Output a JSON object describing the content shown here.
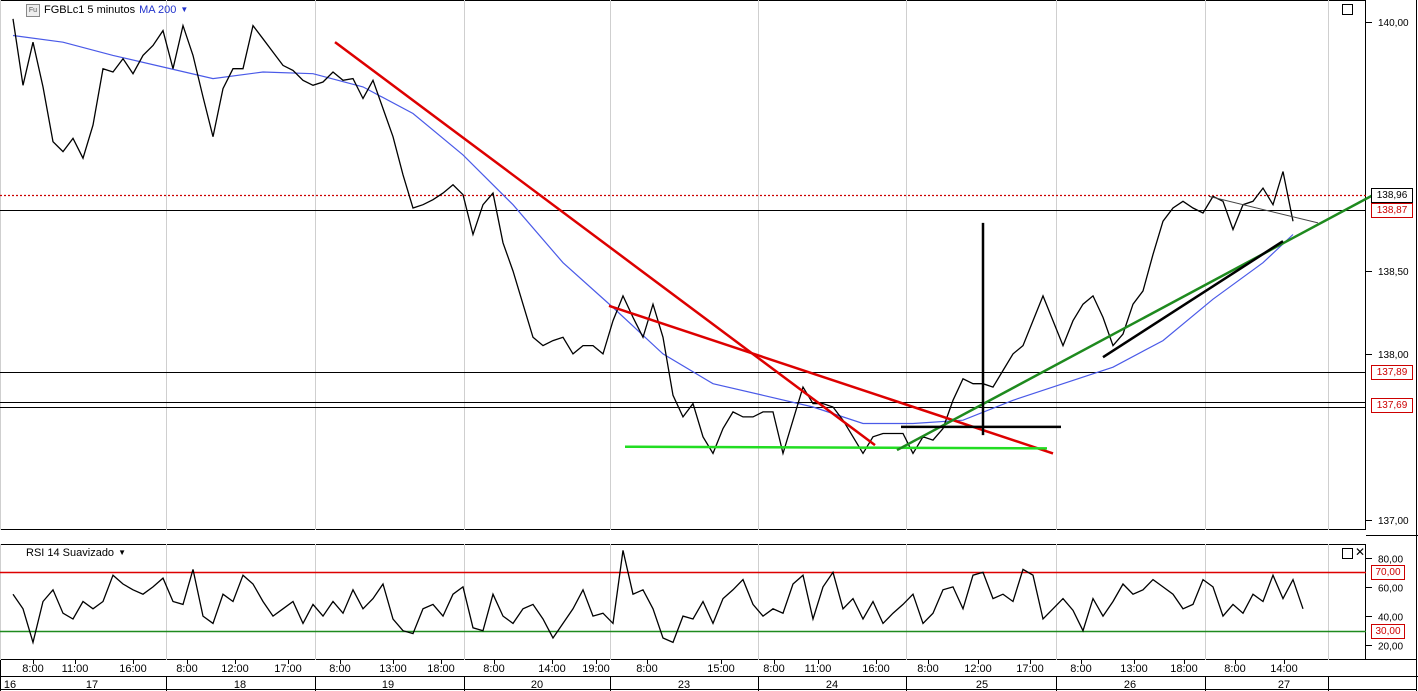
{
  "main_panel": {
    "symbol_icon": "Fu",
    "symbol_label": "FGBLc1 5 minutos",
    "ma_label": "MA 200",
    "y_ticks": [
      "140,00",
      "138,00",
      "137,00"
    ],
    "price_tags": [
      {
        "label": "138,96",
        "value": 138.96,
        "color": "#000000",
        "line_color": "#cc0000",
        "line_style": "dotted"
      },
      {
        "label": "138,87",
        "value": 138.87,
        "color": "#cc0000",
        "line_color": "#000000",
        "line_style": "solid"
      },
      {
        "label": "137,89",
        "value": 137.89,
        "color": "#cc0000",
        "line_color": "#000000",
        "line_style": "solid"
      },
      {
        "label": "137,69",
        "value": 137.69,
        "color": "#cc0000",
        "line_color": "#000000",
        "line_style": "double"
      }
    ],
    "tick_138_50_hidden": "138,50"
  },
  "rsi_panel": {
    "label": "RSI 14 Suavizado",
    "y_ticks": [
      "80,00",
      "60,00",
      "40,00",
      "20,00"
    ],
    "level_tags": [
      {
        "label": "70,00",
        "value": 70,
        "color": "#cc0000"
      },
      {
        "label": "30,00",
        "value": 30,
        "color": "#cc0000"
      }
    ]
  },
  "x_axis": {
    "time_labels": [
      "8:00",
      "11:00",
      "16:00",
      "8:00",
      "12:00",
      "17:00",
      "8:00",
      "13:00",
      "18:00",
      "8:00",
      "14:00",
      "19:00",
      "8:00",
      "15:00",
      "8:00",
      "11:00",
      "16:00",
      "8:00",
      "12:00",
      "17:00",
      "8:00",
      "13:00",
      "18:00",
      "8:00",
      "14:00"
    ],
    "day_labels": [
      "16",
      "17",
      "18",
      "19",
      "20",
      "23",
      "24",
      "25",
      "26",
      "27"
    ]
  },
  "chart_data": [
    {
      "type": "line",
      "title": "FGBLc1 5 minutos",
      "series": [
        {
          "name": "FGBLc1 5 minutos",
          "color": "#000000",
          "x": [
            0,
            10,
            20,
            30,
            40,
            50,
            60,
            70,
            80,
            90,
            100,
            110,
            120,
            130,
            140,
            150,
            160,
            170,
            180,
            190,
            200,
            210,
            220,
            230,
            240,
            250,
            260,
            270,
            280,
            290,
            300,
            310,
            320,
            330,
            340,
            350,
            360,
            370,
            380,
            390,
            400,
            410,
            420,
            430,
            440,
            450,
            460,
            470,
            480,
            490,
            500,
            510,
            520,
            530,
            540,
            550,
            560,
            570,
            580,
            590,
            600,
            610,
            620,
            630,
            640,
            650,
            660,
            670,
            680,
            690,
            700,
            710,
            720,
            730,
            740,
            750,
            760,
            770,
            780,
            790,
            800,
            810,
            820,
            830,
            840,
            850,
            860,
            870,
            880,
            890,
            900,
            910,
            920,
            930,
            940,
            950,
            960,
            970,
            980,
            990,
            1000,
            1010,
            1020,
            1030,
            1040,
            1050,
            1060,
            1070,
            1080,
            1090,
            1100,
            1110,
            1120,
            1130,
            1140,
            1150,
            1160,
            1170,
            1180,
            1190,
            1200,
            1210,
            1220,
            1230,
            1240,
            1250,
            1260,
            1270,
            1280
          ],
          "values": [
            140.02,
            139.62,
            139.88,
            139.61,
            139.28,
            139.22,
            139.3,
            139.18,
            139.38,
            139.72,
            139.7,
            139.78,
            139.69,
            139.8,
            139.86,
            139.95,
            139.72,
            139.98,
            139.8,
            139.55,
            139.31,
            139.6,
            139.72,
            139.72,
            139.98,
            139.9,
            139.82,
            139.74,
            139.71,
            139.65,
            139.62,
            139.64,
            139.7,
            139.65,
            139.66,
            139.54,
            139.65,
            139.48,
            139.31,
            139.08,
            138.88,
            138.9,
            138.93,
            138.97,
            139.02,
            138.96,
            138.72,
            138.9,
            138.97,
            138.67,
            138.5,
            138.3,
            138.1,
            138.05,
            138.08,
            138.1,
            138.0,
            138.05,
            138.05,
            138.0,
            138.2,
            138.35,
            138.22,
            138.1,
            138.3,
            138.1,
            137.75,
            137.62,
            137.7,
            137.5,
            137.4,
            137.55,
            137.65,
            137.62,
            137.62,
            137.65,
            137.65,
            137.4,
            137.6,
            137.8,
            137.7,
            137.7,
            137.68,
            137.6,
            137.5,
            137.4,
            137.5,
            137.52,
            137.52,
            137.52,
            137.4,
            137.5,
            137.48,
            137.55,
            137.72,
            137.85,
            137.82,
            137.82,
            137.8,
            137.9,
            138.0,
            138.05,
            138.2,
            138.35,
            138.2,
            138.05,
            138.2,
            138.3,
            138.35,
            138.22,
            138.05,
            138.12,
            138.3,
            138.38,
            138.6,
            138.8,
            138.88,
            138.92,
            138.88,
            138.85,
            138.95,
            138.92,
            138.75,
            138.9,
            138.92,
            139.0,
            138.9,
            139.1,
            138.8
          ]
        },
        {
          "name": "MA 200",
          "color": "#4a5ae8",
          "x": [
            0,
            50,
            100,
            150,
            200,
            250,
            300,
            350,
            400,
            450,
            500,
            550,
            600,
            650,
            700,
            750,
            800,
            850,
            900,
            950,
            1000,
            1050,
            1100,
            1150,
            1200,
            1250,
            1280
          ],
          "values": [
            139.92,
            139.88,
            139.8,
            139.73,
            139.66,
            139.7,
            139.69,
            139.61,
            139.45,
            139.2,
            138.9,
            138.55,
            138.28,
            138.0,
            137.82,
            137.75,
            137.68,
            137.58,
            137.58,
            137.6,
            137.72,
            137.82,
            137.92,
            138.08,
            138.33,
            138.55,
            138.72
          ]
        }
      ],
      "annotations": [
        {
          "type": "trendline",
          "color": "#dd0000",
          "from": [
            322,
            139.88
          ],
          "to": [
            862,
            137.45
          ]
        },
        {
          "type": "trendline",
          "color": "#dd0000",
          "from": [
            596,
            138.29
          ],
          "to": [
            1040,
            137.4
          ]
        },
        {
          "type": "trendline",
          "color": "#22dd22",
          "from": [
            612,
            137.44
          ],
          "to": [
            1034,
            137.43
          ]
        },
        {
          "type": "trendline",
          "color": "#1e8a1e",
          "from": [
            884,
            137.42
          ],
          "to": [
            1370,
            138.99
          ]
        },
        {
          "type": "trendline",
          "color": "#000000",
          "from": [
            1090,
            137.98
          ],
          "to": [
            1270,
            138.68
          ]
        },
        {
          "type": "trendline",
          "color": "#444444",
          "from": [
            1196,
            138.95
          ],
          "to": [
            1305,
            138.79
          ]
        },
        {
          "type": "segment",
          "color": "#000000",
          "from": [
            888,
            137.56
          ],
          "to": [
            1048,
            137.56
          ]
        },
        {
          "type": "segment",
          "color": "#000000",
          "from": [
            970,
            138.79
          ],
          "to": [
            970,
            137.51
          ]
        }
      ],
      "ylim": [
        136.95,
        140.08
      ],
      "xlabel": "",
      "ylabel": ""
    },
    {
      "type": "line",
      "title": "RSI 14 Suavizado",
      "series": [
        {
          "name": "RSI 14 Suavizado",
          "color": "#000000",
          "x": [
            0,
            10,
            20,
            30,
            40,
            50,
            60,
            70,
            80,
            90,
            100,
            110,
            120,
            130,
            140,
            150,
            160,
            170,
            180,
            190,
            200,
            210,
            220,
            230,
            240,
            250,
            260,
            270,
            280,
            290,
            300,
            310,
            320,
            330,
            340,
            350,
            360,
            370,
            380,
            390,
            400,
            410,
            420,
            430,
            440,
            450,
            460,
            470,
            480,
            490,
            500,
            510,
            520,
            530,
            540,
            550,
            560,
            570,
            580,
            590,
            600,
            610,
            620,
            630,
            640,
            650,
            660,
            670,
            680,
            690,
            700,
            710,
            720,
            730,
            740,
            750,
            760,
            770,
            780,
            790,
            800,
            810,
            820,
            830,
            840,
            850,
            860,
            870,
            880,
            890,
            900,
            910,
            920,
            930,
            940,
            950,
            960,
            970,
            980,
            990,
            1000,
            1010,
            1020,
            1030,
            1040,
            1050,
            1060,
            1070,
            1080,
            1090,
            1100,
            1110,
            1120,
            1130,
            1140,
            1150,
            1160,
            1170,
            1180,
            1190,
            1200,
            1210,
            1220,
            1230,
            1240,
            1250,
            1260,
            1270,
            1280,
            1290
          ],
          "values": [
            55,
            45,
            22,
            50,
            58,
            42,
            38,
            50,
            45,
            50,
            68,
            62,
            58,
            55,
            60,
            66,
            50,
            48,
            72,
            40,
            35,
            55,
            50,
            68,
            62,
            50,
            40,
            45,
            50,
            35,
            48,
            40,
            50,
            42,
            58,
            45,
            52,
            62,
            38,
            30,
            28,
            45,
            48,
            40,
            55,
            60,
            32,
            30,
            55,
            40,
            35,
            45,
            48,
            38,
            25,
            35,
            45,
            58,
            40,
            42,
            35,
            85,
            55,
            58,
            45,
            25,
            22,
            40,
            38,
            50,
            35,
            52,
            58,
            65,
            48,
            40,
            45,
            42,
            62,
            68,
            38,
            60,
            70,
            45,
            52,
            38,
            50,
            35,
            42,
            48,
            55,
            35,
            42,
            58,
            60,
            45,
            68,
            70,
            52,
            55,
            50,
            72,
            68,
            38,
            45,
            52,
            44,
            30,
            52,
            40,
            50,
            62,
            55,
            58,
            65,
            60,
            55,
            45,
            48,
            65,
            60,
            40,
            48,
            42,
            55,
            50,
            68,
            52,
            65,
            45
          ]
        }
      ],
      "levels": [
        70,
        30
      ],
      "ylim": [
        12,
        88
      ],
      "xlabel": "",
      "ylabel": ""
    }
  ]
}
